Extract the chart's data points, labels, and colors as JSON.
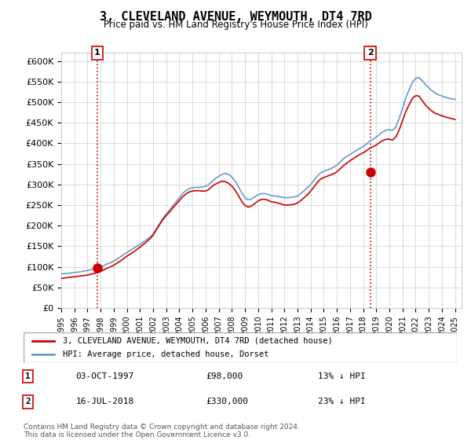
{
  "title": "3, CLEVELAND AVENUE, WEYMOUTH, DT4 7RD",
  "subtitle": "Price paid vs. HM Land Registry's House Price Index (HPI)",
  "ylabel": "",
  "ylim": [
    0,
    620000
  ],
  "yticks": [
    0,
    50000,
    100000,
    150000,
    200000,
    250000,
    300000,
    350000,
    400000,
    450000,
    500000,
    550000,
    600000
  ],
  "xlim_start": 1995.0,
  "xlim_end": 2025.5,
  "legend_label_red": "3, CLEVELAND AVENUE, WEYMOUTH, DT4 7RD (detached house)",
  "legend_label_blue": "HPI: Average price, detached house, Dorset",
  "marker1_x": 1997.75,
  "marker1_y": 98000,
  "marker1_label": "1",
  "marker2_x": 2018.54,
  "marker2_y": 330000,
  "marker2_label": "2",
  "annotation1_date": "03-OCT-1997",
  "annotation1_price": "£98,000",
  "annotation1_hpi": "13% ↓ HPI",
  "annotation2_date": "16-JUL-2018",
  "annotation2_price": "£330,000",
  "annotation2_hpi": "23% ↓ HPI",
  "footer": "Contains HM Land Registry data © Crown copyright and database right 2024.\nThis data is licensed under the Open Government Licence v3.0.",
  "color_red": "#cc0000",
  "color_blue": "#6699cc",
  "color_grid": "#cccccc",
  "color_bg": "#ffffff",
  "hpi_data_x": [
    1995.0,
    1995.25,
    1995.5,
    1995.75,
    1996.0,
    1996.25,
    1996.5,
    1996.75,
    1997.0,
    1997.25,
    1997.5,
    1997.75,
    1998.0,
    1998.25,
    1998.5,
    1998.75,
    1999.0,
    1999.25,
    1999.5,
    1999.75,
    2000.0,
    2000.25,
    2000.5,
    2000.75,
    2001.0,
    2001.25,
    2001.5,
    2001.75,
    2002.0,
    2002.25,
    2002.5,
    2002.75,
    2003.0,
    2003.25,
    2003.5,
    2003.75,
    2004.0,
    2004.25,
    2004.5,
    2004.75,
    2005.0,
    2005.25,
    2005.5,
    2005.75,
    2006.0,
    2006.25,
    2006.5,
    2006.75,
    2007.0,
    2007.25,
    2007.5,
    2007.75,
    2008.0,
    2008.25,
    2008.5,
    2008.75,
    2009.0,
    2009.25,
    2009.5,
    2009.75,
    2010.0,
    2010.25,
    2010.5,
    2010.75,
    2011.0,
    2011.25,
    2011.5,
    2011.75,
    2012.0,
    2012.25,
    2012.5,
    2012.75,
    2013.0,
    2013.25,
    2013.5,
    2013.75,
    2014.0,
    2014.25,
    2014.5,
    2014.75,
    2015.0,
    2015.25,
    2015.5,
    2015.75,
    2016.0,
    2016.25,
    2016.5,
    2016.75,
    2017.0,
    2017.25,
    2017.5,
    2017.75,
    2018.0,
    2018.25,
    2018.5,
    2018.75,
    2019.0,
    2019.25,
    2019.5,
    2019.75,
    2020.0,
    2020.25,
    2020.5,
    2020.75,
    2021.0,
    2021.25,
    2021.5,
    2021.75,
    2022.0,
    2022.25,
    2022.5,
    2022.75,
    2023.0,
    2023.25,
    2023.5,
    2023.75,
    2024.0,
    2024.25,
    2024.5,
    2024.75,
    2025.0
  ],
  "hpi_data_y": [
    83000,
    83500,
    84000,
    85000,
    86000,
    87000,
    88000,
    90000,
    91000,
    93000,
    95000,
    97000,
    100000,
    103000,
    107000,
    110000,
    114000,
    119000,
    124000,
    130000,
    135000,
    140000,
    145000,
    150000,
    155000,
    160000,
    166000,
    172000,
    180000,
    192000,
    205000,
    218000,
    228000,
    238000,
    248000,
    258000,
    268000,
    278000,
    285000,
    290000,
    292000,
    293000,
    293000,
    294000,
    296000,
    300000,
    308000,
    315000,
    320000,
    325000,
    327000,
    325000,
    318000,
    308000,
    295000,
    280000,
    268000,
    263000,
    265000,
    270000,
    275000,
    278000,
    278000,
    276000,
    273000,
    272000,
    271000,
    270000,
    268000,
    268000,
    269000,
    270000,
    272000,
    278000,
    285000,
    292000,
    300000,
    310000,
    320000,
    328000,
    332000,
    335000,
    338000,
    342000,
    347000,
    355000,
    363000,
    368000,
    373000,
    378000,
    383000,
    388000,
    392000,
    398000,
    405000,
    410000,
    415000,
    422000,
    428000,
    432000,
    433000,
    432000,
    440000,
    460000,
    485000,
    510000,
    530000,
    548000,
    558000,
    560000,
    552000,
    543000,
    535000,
    528000,
    522000,
    518000,
    515000,
    512000,
    510000,
    508000,
    507000
  ],
  "red_data_x": [
    1995.0,
    1995.25,
    1995.5,
    1995.75,
    1996.0,
    1996.25,
    1996.5,
    1996.75,
    1997.0,
    1997.25,
    1997.5,
    1997.75,
    1998.0,
    1998.25,
    1998.5,
    1998.75,
    1999.0,
    1999.25,
    1999.5,
    1999.75,
    2000.0,
    2000.25,
    2000.5,
    2000.75,
    2001.0,
    2001.25,
    2001.5,
    2001.75,
    2002.0,
    2002.25,
    2002.5,
    2002.75,
    2003.0,
    2003.25,
    2003.5,
    2003.75,
    2004.0,
    2004.25,
    2004.5,
    2004.75,
    2005.0,
    2005.25,
    2005.5,
    2005.75,
    2006.0,
    2006.25,
    2006.5,
    2006.75,
    2007.0,
    2007.25,
    2007.5,
    2007.75,
    2008.0,
    2008.25,
    2008.5,
    2008.75,
    2009.0,
    2009.25,
    2009.5,
    2009.75,
    2010.0,
    2010.25,
    2010.5,
    2010.75,
    2011.0,
    2011.25,
    2011.5,
    2011.75,
    2012.0,
    2012.25,
    2012.5,
    2012.75,
    2013.0,
    2013.25,
    2013.5,
    2013.75,
    2014.0,
    2014.25,
    2014.5,
    2014.75,
    2015.0,
    2015.25,
    2015.5,
    2015.75,
    2016.0,
    2016.25,
    2016.5,
    2016.75,
    2017.0,
    2017.25,
    2017.5,
    2017.75,
    2018.0,
    2018.25,
    2018.5,
    2018.75,
    2019.0,
    2019.25,
    2019.5,
    2019.75,
    2020.0,
    2020.25,
    2020.5,
    2020.75,
    2021.0,
    2021.25,
    2021.5,
    2021.75,
    2022.0,
    2022.25,
    2022.5,
    2022.75,
    2023.0,
    2023.25,
    2023.5,
    2023.75,
    2024.0,
    2024.25,
    2024.5,
    2024.75,
    2025.0
  ],
  "red_data_y": [
    72000,
    73000,
    74000,
    75000,
    76000,
    77000,
    78000,
    79000,
    80000,
    82000,
    84000,
    86000,
    89000,
    93000,
    97000,
    100000,
    104000,
    109000,
    114000,
    120000,
    126000,
    131000,
    136000,
    142000,
    148000,
    154000,
    161000,
    168000,
    177000,
    190000,
    203000,
    215000,
    225000,
    233000,
    243000,
    252000,
    261000,
    270000,
    277000,
    282000,
    284000,
    285000,
    285000,
    284000,
    284000,
    288000,
    296000,
    301000,
    305000,
    308000,
    307000,
    303000,
    296000,
    286000,
    273000,
    259000,
    249000,
    245000,
    248000,
    254000,
    260000,
    264000,
    264000,
    262000,
    258000,
    257000,
    255000,
    253000,
    250000,
    250000,
    251000,
    252000,
    255000,
    261000,
    268000,
    275000,
    284000,
    294000,
    305000,
    313000,
    317000,
    320000,
    323000,
    326000,
    331000,
    338000,
    346000,
    352000,
    358000,
    363000,
    368000,
    373000,
    377000,
    382000,
    388000,
    392000,
    396000,
    402000,
    407000,
    410000,
    410000,
    408000,
    416000,
    433000,
    455000,
    477000,
    494000,
    509000,
    516000,
    515000,
    504000,
    493000,
    485000,
    478000,
    473000,
    470000,
    467000,
    464000,
    462000,
    460000,
    458000
  ]
}
